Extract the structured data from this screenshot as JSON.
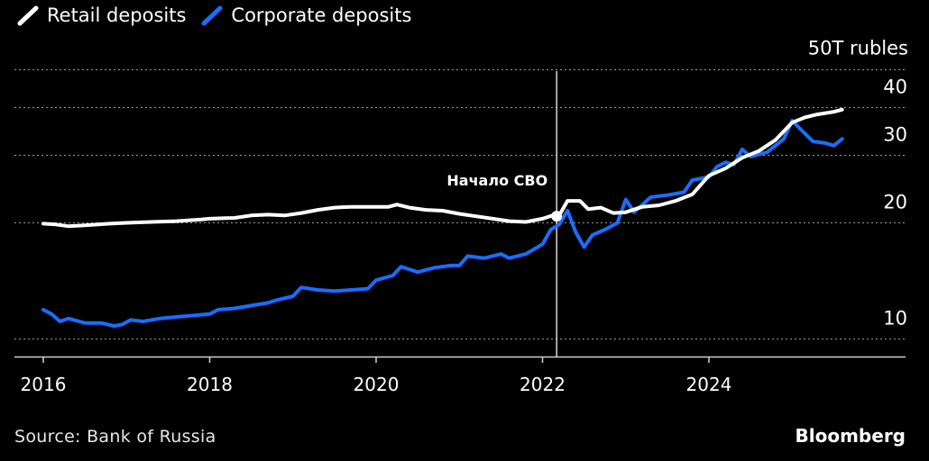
{
  "legend": {
    "retail": "Retail deposits",
    "corporate": "Corporate deposits"
  },
  "colors": {
    "background": "#000000",
    "retail": "#ffffff",
    "corporate": "#1a6dff",
    "grid": "#9a9a9a",
    "text": "#ffffff"
  },
  "source": "Source: Bank of Russia",
  "brand": "Bloomberg",
  "chart_data": {
    "type": "line",
    "y_scale": "log",
    "ylim": [
      9,
      50
    ],
    "xlim": [
      2016.0,
      2026.0
    ],
    "y_ticks": [
      {
        "value": 50,
        "label": "50T rubles"
      },
      {
        "value": 40,
        "label": "40"
      },
      {
        "value": 30,
        "label": "30"
      },
      {
        "value": 20,
        "label": "20"
      },
      {
        "value": 10,
        "label": "10"
      }
    ],
    "x_ticks": [
      {
        "value": 2016,
        "label": "2016"
      },
      {
        "value": 2018,
        "label": "2018"
      },
      {
        "value": 2020,
        "label": "2020"
      },
      {
        "value": 2022,
        "label": "2022"
      },
      {
        "value": 2024,
        "label": "2024"
      }
    ],
    "grid": "horizontal dotted",
    "legend_position": "top-left",
    "annotation": {
      "label": "Начало СВО",
      "x": 2022.17,
      "marker_y": 20.8
    },
    "series": [
      {
        "name": "Retail deposits",
        "key": "retail",
        "points": [
          [
            2016.0,
            19.9
          ],
          [
            2016.15,
            19.8
          ],
          [
            2016.3,
            19.6
          ],
          [
            2016.5,
            19.7
          ],
          [
            2016.8,
            19.9
          ],
          [
            2017.0,
            20.0
          ],
          [
            2017.3,
            20.1
          ],
          [
            2017.6,
            20.2
          ],
          [
            2017.9,
            20.4
          ],
          [
            2018.0,
            20.5
          ],
          [
            2018.3,
            20.6
          ],
          [
            2018.5,
            20.9
          ],
          [
            2018.7,
            21.0
          ],
          [
            2018.9,
            20.9
          ],
          [
            2019.1,
            21.2
          ],
          [
            2019.3,
            21.6
          ],
          [
            2019.5,
            21.9
          ],
          [
            2019.7,
            22.0
          ],
          [
            2019.9,
            22.0
          ],
          [
            2020.0,
            22.0
          ],
          [
            2020.15,
            22.0
          ],
          [
            2020.25,
            22.3
          ],
          [
            2020.4,
            21.9
          ],
          [
            2020.6,
            21.6
          ],
          [
            2020.8,
            21.5
          ],
          [
            2021.0,
            21.1
          ],
          [
            2021.2,
            20.8
          ],
          [
            2021.4,
            20.5
          ],
          [
            2021.6,
            20.2
          ],
          [
            2021.8,
            20.1
          ],
          [
            2022.0,
            20.5
          ],
          [
            2022.12,
            20.9
          ],
          [
            2022.2,
            20.9
          ],
          [
            2022.3,
            22.8
          ],
          [
            2022.45,
            22.8
          ],
          [
            2022.55,
            21.7
          ],
          [
            2022.7,
            21.9
          ],
          [
            2022.85,
            21.2
          ],
          [
            2023.0,
            21.3
          ],
          [
            2023.2,
            22.0
          ],
          [
            2023.4,
            22.2
          ],
          [
            2023.6,
            22.8
          ],
          [
            2023.8,
            23.7
          ],
          [
            2024.0,
            26.5
          ],
          [
            2024.2,
            27.7
          ],
          [
            2024.4,
            29.5
          ],
          [
            2024.6,
            30.7
          ],
          [
            2024.8,
            32.8
          ],
          [
            2025.0,
            36.4
          ],
          [
            2025.15,
            37.5
          ],
          [
            2025.3,
            38.2
          ],
          [
            2025.5,
            38.8
          ],
          [
            2025.6,
            39.3
          ]
        ]
      },
      {
        "name": "Corporate deposits",
        "key": "corporate",
        "points": [
          [
            2016.0,
            11.9
          ],
          [
            2016.1,
            11.6
          ],
          [
            2016.2,
            11.1
          ],
          [
            2016.3,
            11.3
          ],
          [
            2016.5,
            11.0
          ],
          [
            2016.7,
            11.0
          ],
          [
            2016.85,
            10.8
          ],
          [
            2016.95,
            10.9
          ],
          [
            2017.05,
            11.2
          ],
          [
            2017.2,
            11.1
          ],
          [
            2017.4,
            11.3
          ],
          [
            2017.6,
            11.4
          ],
          [
            2017.8,
            11.5
          ],
          [
            2018.0,
            11.6
          ],
          [
            2018.1,
            11.9
          ],
          [
            2018.3,
            12.0
          ],
          [
            2018.5,
            12.2
          ],
          [
            2018.7,
            12.4
          ],
          [
            2018.8,
            12.6
          ],
          [
            2019.0,
            12.9
          ],
          [
            2019.1,
            13.6
          ],
          [
            2019.3,
            13.4
          ],
          [
            2019.5,
            13.3
          ],
          [
            2019.7,
            13.4
          ],
          [
            2019.9,
            13.5
          ],
          [
            2020.0,
            14.2
          ],
          [
            2020.2,
            14.6
          ],
          [
            2020.3,
            15.4
          ],
          [
            2020.5,
            14.9
          ],
          [
            2020.7,
            15.3
          ],
          [
            2020.9,
            15.5
          ],
          [
            2021.0,
            15.5
          ],
          [
            2021.1,
            16.4
          ],
          [
            2021.3,
            16.2
          ],
          [
            2021.5,
            16.6
          ],
          [
            2021.6,
            16.2
          ],
          [
            2021.8,
            16.6
          ],
          [
            2022.0,
            17.6
          ],
          [
            2022.1,
            19.2
          ],
          [
            2022.2,
            19.8
          ],
          [
            2022.3,
            21.5
          ],
          [
            2022.4,
            18.9
          ],
          [
            2022.5,
            17.3
          ],
          [
            2022.6,
            18.6
          ],
          [
            2022.75,
            19.2
          ],
          [
            2022.9,
            20.0
          ],
          [
            2023.0,
            23.0
          ],
          [
            2023.1,
            21.3
          ],
          [
            2023.3,
            23.3
          ],
          [
            2023.5,
            23.6
          ],
          [
            2023.7,
            24.0
          ],
          [
            2023.8,
            25.8
          ],
          [
            2024.0,
            26.3
          ],
          [
            2024.1,
            28.0
          ],
          [
            2024.2,
            28.7
          ],
          [
            2024.3,
            28.3
          ],
          [
            2024.4,
            31.0
          ],
          [
            2024.5,
            29.7
          ],
          [
            2024.7,
            30.5
          ],
          [
            2024.9,
            33.0
          ],
          [
            2025.0,
            36.8
          ],
          [
            2025.1,
            35.0
          ],
          [
            2025.25,
            32.5
          ],
          [
            2025.4,
            32.2
          ],
          [
            2025.5,
            31.7
          ],
          [
            2025.6,
            33.0
          ]
        ]
      }
    ]
  }
}
